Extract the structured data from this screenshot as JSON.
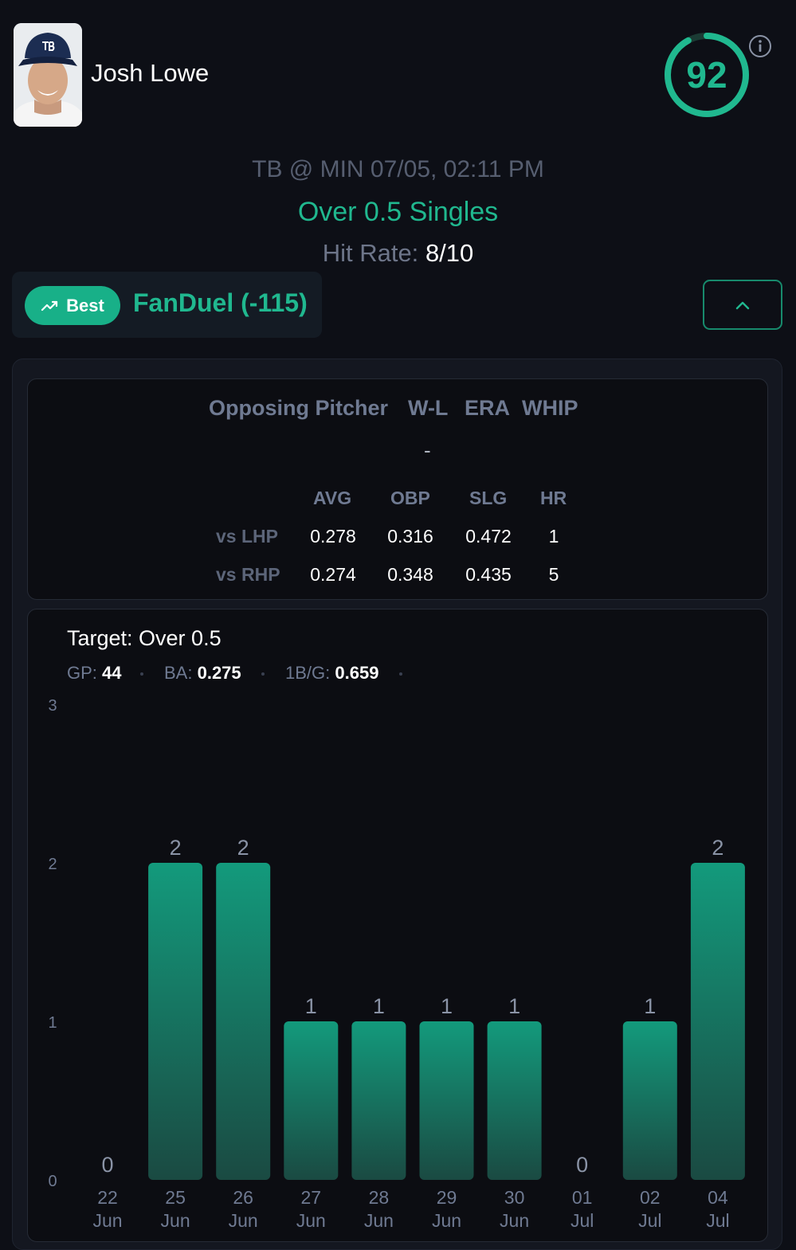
{
  "player": {
    "name": "Josh Lowe",
    "photo_icon": "player-headshot-icon",
    "score": "92"
  },
  "game": {
    "matchup": "TB @ MIN 07/05, 02:11 PM",
    "market": "Over 0.5 Singles",
    "hit_rate_label": "Hit Rate:",
    "hit_rate_value": "8/10"
  },
  "odds": {
    "badge_label": "Best",
    "sportsbook": "FanDuel (-115)"
  },
  "pitcher": {
    "headers": [
      "Opposing Pitcher",
      "W-L",
      "ERA",
      "WHIP"
    ],
    "value": "-",
    "split_headers": [
      "AVG",
      "OBP",
      "SLG",
      "HR"
    ],
    "splits": [
      {
        "label": "vs LHP",
        "values": [
          "0.278",
          "0.316",
          "0.472",
          "1"
        ]
      },
      {
        "label": "vs RHP",
        "values": [
          "0.274",
          "0.348",
          "0.435",
          "5"
        ]
      }
    ]
  },
  "summary": {
    "target": "Target: Over 0.5",
    "stats": [
      {
        "label": "GP:",
        "value": "44"
      },
      {
        "label": "BA:",
        "value": "0.275"
      },
      {
        "label": "1B/G:",
        "value": "0.659"
      }
    ]
  },
  "colors": {
    "accent": "#20b88f",
    "bar_top": "#139a7c",
    "bar_bottom": "#1a4a42",
    "background": "#0d0f16"
  },
  "chart_data": {
    "type": "bar",
    "categories": [
      [
        "22",
        "Jun"
      ],
      [
        "25",
        "Jun"
      ],
      [
        "26",
        "Jun"
      ],
      [
        "27",
        "Jun"
      ],
      [
        "28",
        "Jun"
      ],
      [
        "29",
        "Jun"
      ],
      [
        "30",
        "Jun"
      ],
      [
        "01",
        "Jul"
      ],
      [
        "02",
        "Jul"
      ],
      [
        "04",
        "Jul"
      ]
    ],
    "values": [
      0,
      2,
      2,
      1,
      1,
      1,
      1,
      0,
      1,
      2
    ],
    "y_ticks": [
      0,
      1,
      2,
      3
    ],
    "ylim": [
      0,
      3
    ],
    "grid": false,
    "data_labels": true
  }
}
